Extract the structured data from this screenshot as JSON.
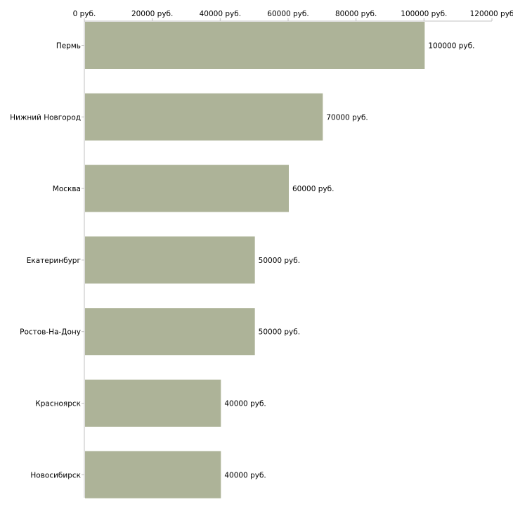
{
  "chart_data": {
    "type": "bar",
    "orientation": "horizontal",
    "title": "",
    "xlabel": "",
    "ylabel": "",
    "categories": [
      "Пермь",
      "Нижний Новгород",
      "Москва",
      "Екатеринбург",
      "Ростов-На-Дону",
      "Красноярск",
      "Новосибирск"
    ],
    "values": [
      100000,
      70000,
      60000,
      50000,
      50000,
      40000,
      40000
    ],
    "value_labels": [
      "100000 руб.",
      "70000 руб.",
      "60000 руб.",
      "50000 руб.",
      "50000 руб.",
      "40000 руб.",
      "40000 руб."
    ],
    "xlim": [
      0,
      120000
    ],
    "x_ticks": [
      0,
      20000,
      40000,
      60000,
      80000,
      100000,
      120000
    ],
    "x_tick_labels": [
      "0 руб.",
      "20000 руб.",
      "40000 руб.",
      "60000 руб.",
      "80000 руб.",
      "100000 руб.",
      "120000 руб"
    ],
    "axis_position": "top",
    "grid": false,
    "legend": "none",
    "bar_color": "#adb398",
    "axis_color": "#c0c0c0"
  }
}
